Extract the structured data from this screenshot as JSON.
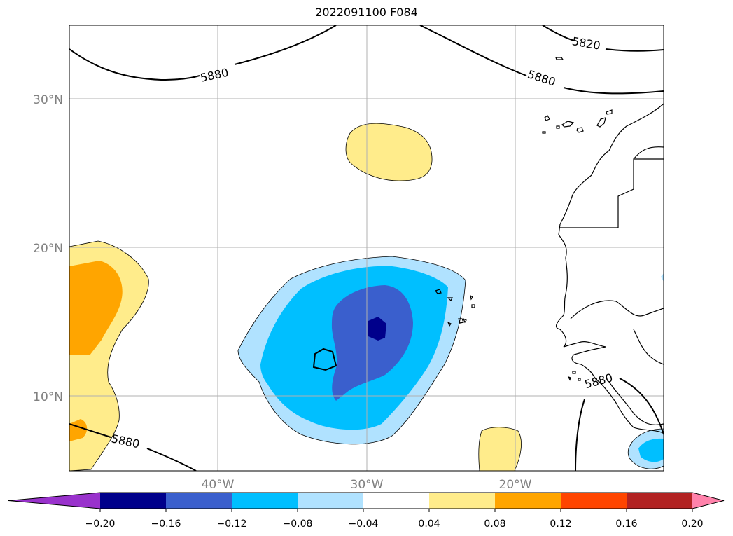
{
  "title": "2022091100 F084",
  "map": {
    "lat_labels": [
      "30°N",
      "20°N",
      "10°N"
    ],
    "lon_labels": [
      "40°W",
      "30°W",
      "20°W"
    ],
    "contour_labels": [
      "5820",
      "5880",
      "5880",
      "5880",
      "5880"
    ],
    "contour_value_main": 5880,
    "colors": {
      "coast": "#000000",
      "grid": "#b0b0b0"
    }
  },
  "colorbar": {
    "ticks": [
      "−0.20",
      "−0.16",
      "−0.12",
      "−0.08",
      "−0.04",
      "0.04",
      "0.08",
      "0.12",
      "0.16",
      "0.20"
    ],
    "colors": [
      "#9932cc",
      "#00008b",
      "#3a5fcd",
      "#00bfff",
      "#b0e2ff",
      "#ffffff",
      "#ffec8b",
      "#ffa500",
      "#ff4500",
      "#b22222",
      "#ff82ab"
    ],
    "extend": "both"
  }
}
